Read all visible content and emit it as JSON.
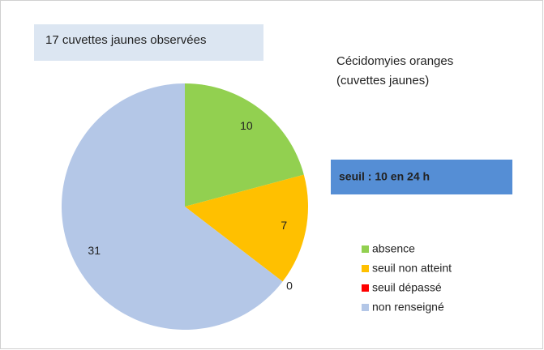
{
  "chart_data": {
    "type": "pie",
    "title": [
      "Cécidomyies oranges",
      "(cuvettes jaunes)"
    ],
    "annotations": [
      "17 cuvettes jaunes observées",
      "seuil : 10 en 24 h"
    ],
    "categories": [
      "absence",
      "seuil non atteint",
      "seuil dépassé",
      "non renseigné"
    ],
    "values": [
      10,
      7,
      0,
      31
    ],
    "colors": [
      "#92d050",
      "#ffc000",
      "#ff0000",
      "#b4c7e7"
    ],
    "legend": "right"
  }
}
